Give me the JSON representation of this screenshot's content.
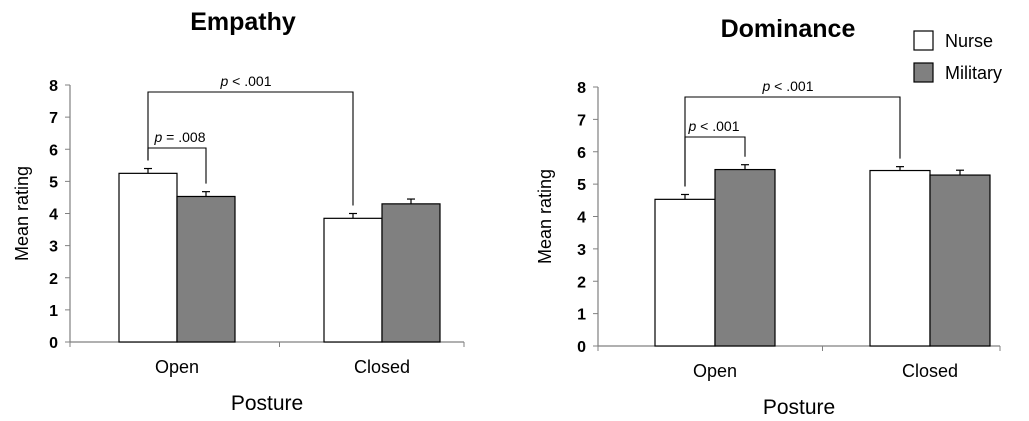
{
  "chart_data": [
    {
      "type": "bar",
      "title": "Empathy",
      "xlabel": "Posture",
      "ylabel": "Mean rating",
      "ylim": [
        0,
        8
      ],
      "yticks": [
        "0",
        "1",
        "2",
        "3",
        "4",
        "5",
        "6",
        "7",
        "8"
      ],
      "categories": [
        "Open",
        "Closed"
      ],
      "series": [
        {
          "name": "Nurse",
          "values": [
            5.25,
            3.85
          ],
          "errors": [
            0.15,
            0.15
          ],
          "color": "#ffffff"
        },
        {
          "name": "Military",
          "values": [
            4.53,
            4.3
          ],
          "errors": [
            0.15,
            0.15
          ],
          "color": "#808080"
        }
      ],
      "annotations": [
        {
          "p": "p",
          "rest": " = .008",
          "from": {
            "cat": 0,
            "series": 0
          },
          "to": {
            "cat": 0,
            "series": 1
          }
        },
        {
          "p": "p",
          "rest": " < .001",
          "from": {
            "cat": 0,
            "series": 0
          },
          "to": {
            "cat": 1,
            "series": 0
          }
        }
      ],
      "legend": "none"
    },
    {
      "type": "bar",
      "title": "Dominance",
      "xlabel": "Posture",
      "ylabel": "Mean rating",
      "ylim": [
        0,
        8
      ],
      "yticks": [
        "0",
        "1",
        "2",
        "3",
        "4",
        "5",
        "6",
        "7",
        "8"
      ],
      "categories": [
        "Open",
        "Closed"
      ],
      "series": [
        {
          "name": "Nurse",
          "values": [
            4.53,
            5.42
          ],
          "errors": [
            0.15,
            0.12
          ],
          "color": "#ffffff"
        },
        {
          "name": "Military",
          "values": [
            5.45,
            5.28
          ],
          "errors": [
            0.15,
            0.15
          ],
          "color": "#808080"
        }
      ],
      "annotations": [
        {
          "p": "p",
          "rest": " < .001",
          "from": {
            "cat": 0,
            "series": 0
          },
          "to": {
            "cat": 0,
            "series": 1
          }
        },
        {
          "p": "p",
          "rest": " < .001",
          "from": {
            "cat": 0,
            "series": 0
          },
          "to": {
            "cat": 1,
            "series": 0
          }
        }
      ],
      "legend": "top-right"
    }
  ]
}
